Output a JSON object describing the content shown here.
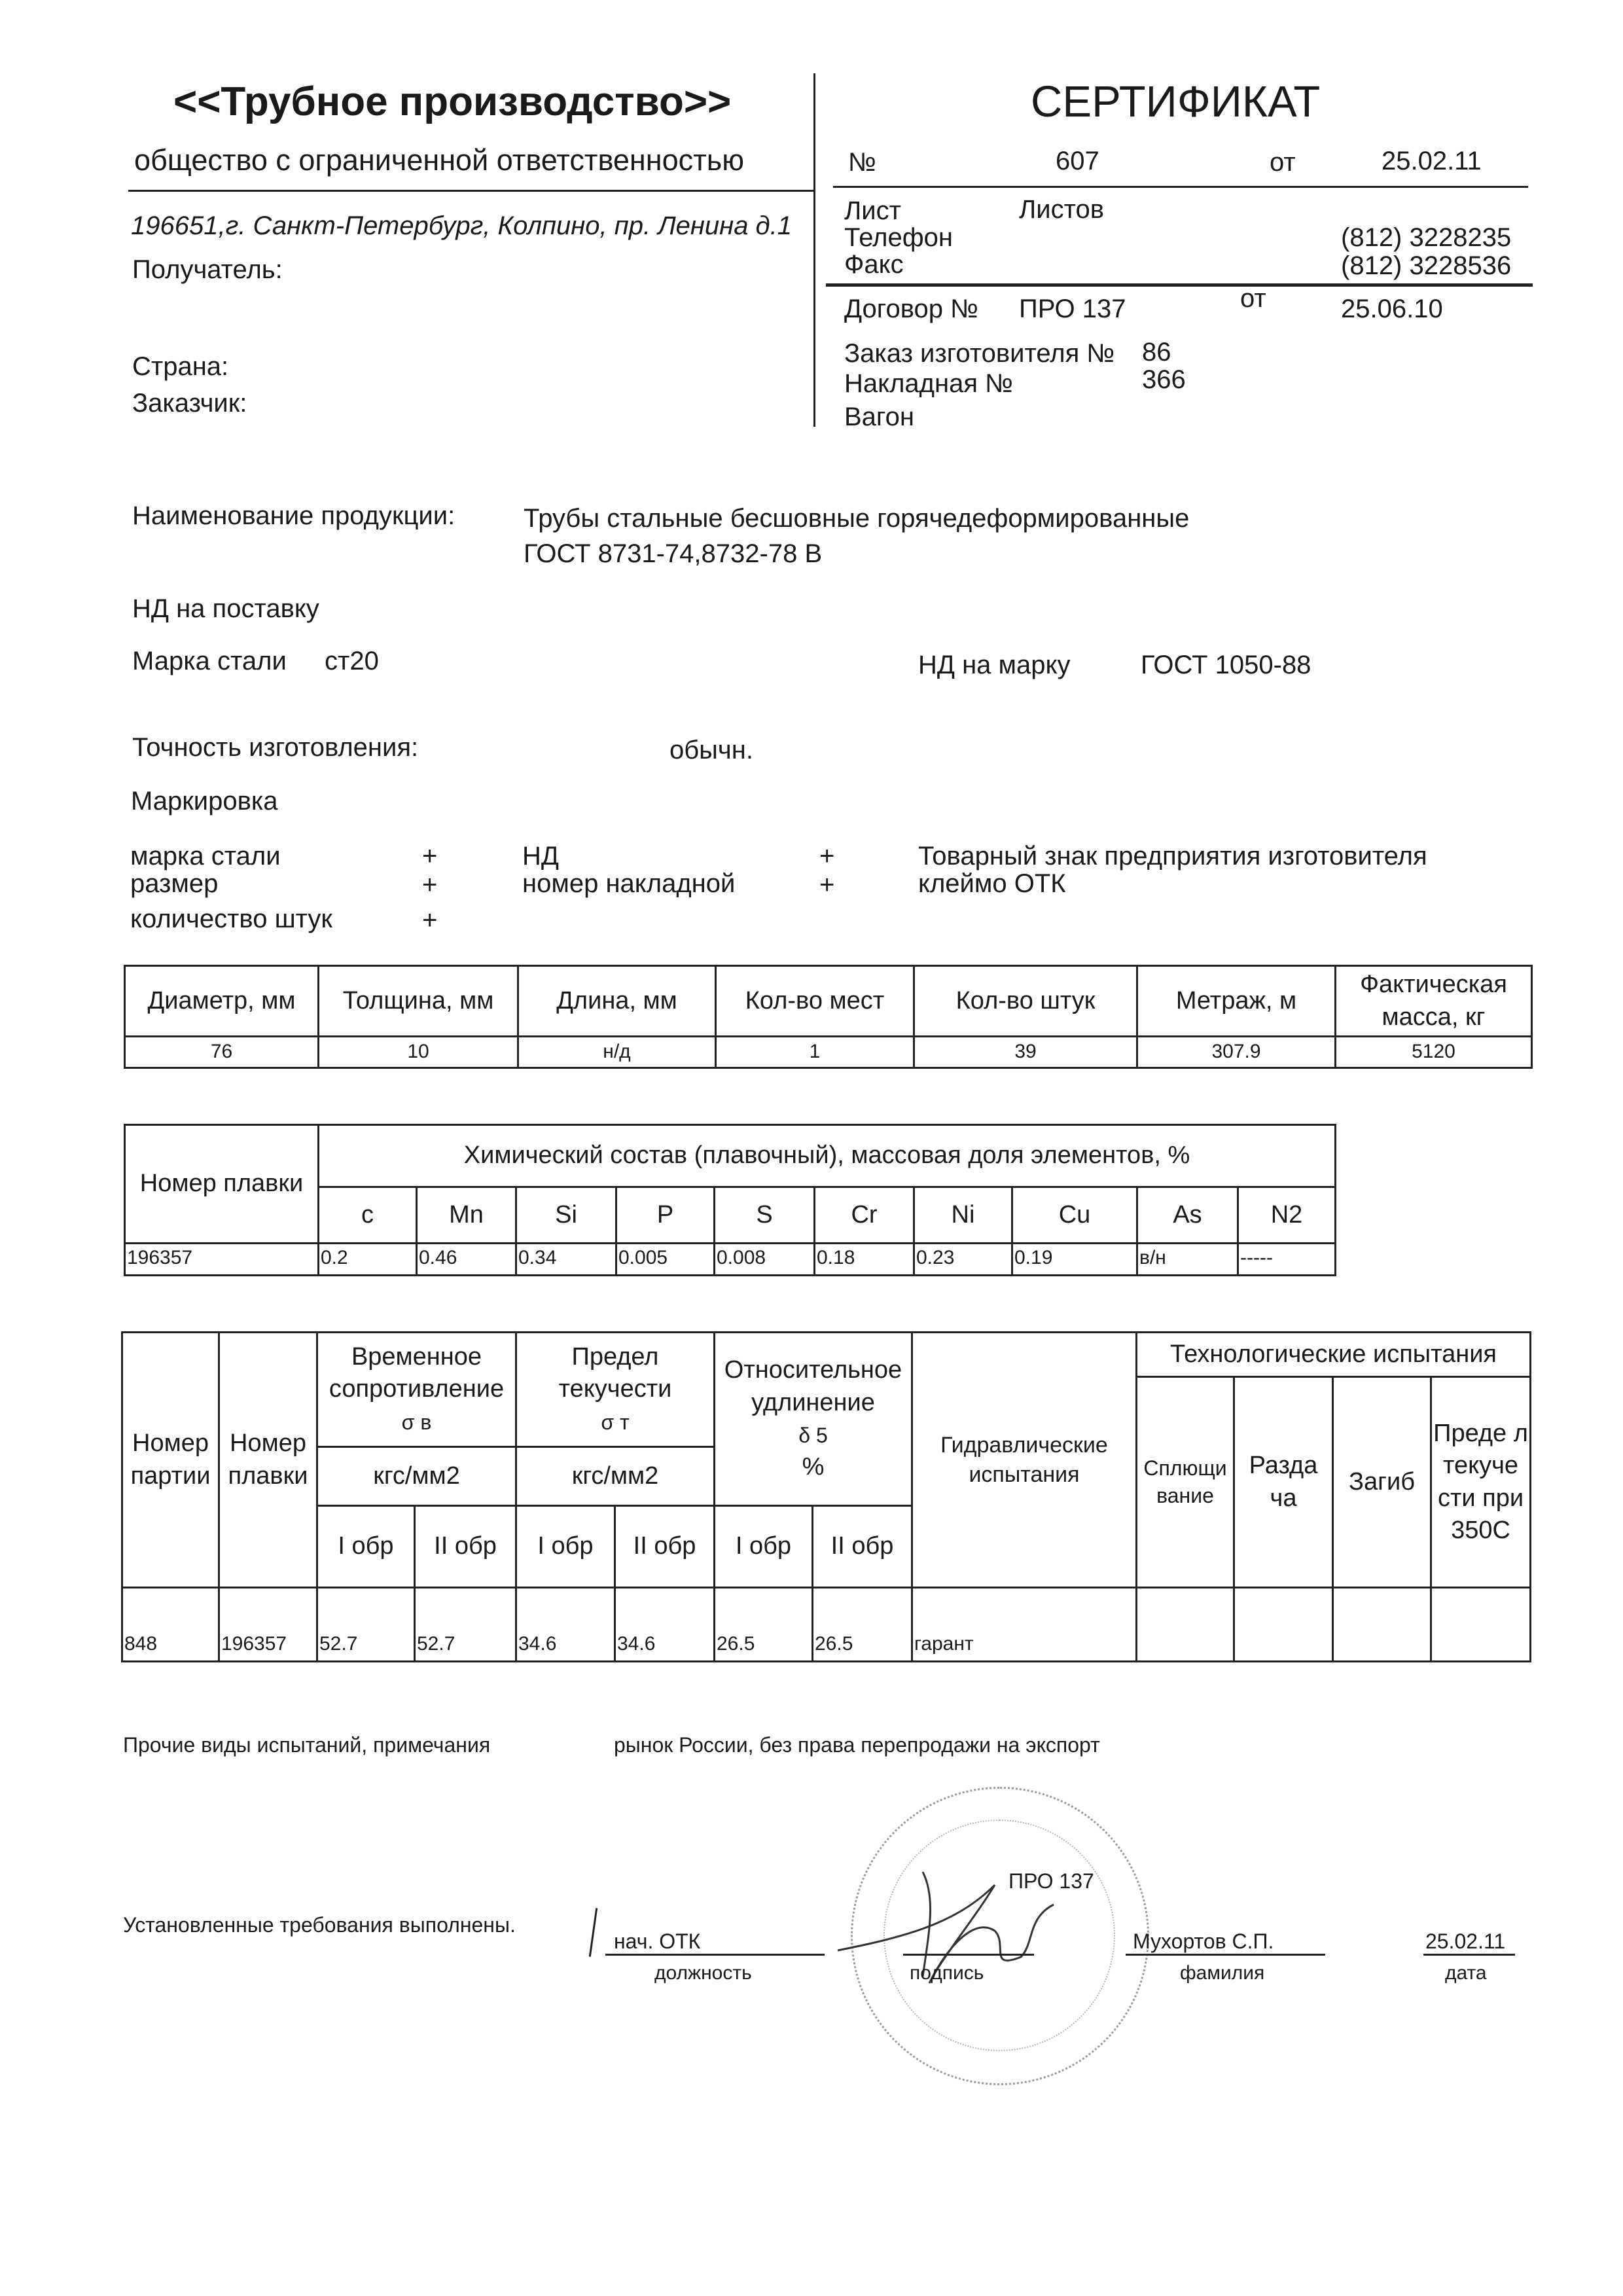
{
  "header": {
    "company": "<<Трубное производство>>",
    "company_type": "общество с ограниченной ответственностью",
    "address": "196651,г. Санкт-Петербург, Колпино, пр. Ленина д.1",
    "recipient_label": "Получатель:",
    "country_label": "Страна:",
    "customer_label": "Заказчик:"
  },
  "certificate": {
    "title": "СЕРТИФИКАТ",
    "number_label": "№",
    "number": "607",
    "from_label": "от",
    "date": "25.02.11",
    "sheet_label": "Лист",
    "sheets_label": "Листов",
    "phone_label": "Телефон",
    "phone": "(812) 3228235",
    "fax_label": "Факс",
    "fax": "(812) 3228536",
    "contract_label": "Договор №",
    "contract": "ПРО 137",
    "contract_from_label": "от",
    "contract_date": "25.06.10",
    "order_label": "Заказ изготовителя №",
    "order": "86",
    "invoice_label": "Накладная №",
    "invoice": "366",
    "wagon_label": "Вагон"
  },
  "product": {
    "name_label": "Наименование продукции:",
    "name_line1": "Трубы стальные бесшовные горячедеформированные",
    "name_line2": "ГОСТ 8731-74,8732-78 В",
    "nd_supply_label": "НД на поставку",
    "steel_label": "Марка стали",
    "steel": "ст20",
    "nd_grade_label": "НД на марку",
    "nd_grade": "ГОСТ  1050-88",
    "accuracy_label": "Точность изготовления:",
    "accuracy": "обычн.",
    "marking_label": "Маркировка"
  },
  "marking": {
    "col1": [
      {
        "label": "марка стали",
        "mark": "+"
      },
      {
        "label": "размер",
        "mark": "+"
      },
      {
        "label": "количество штук",
        "mark": "+"
      }
    ],
    "col2": [
      {
        "label": "НД",
        "mark": "+"
      },
      {
        "label": "номер накладной",
        "mark": "+"
      }
    ],
    "col3": [
      "Товарный знак предприятия изготовителя",
      "клеймо ОТК"
    ]
  },
  "table1": {
    "headers": [
      "Диаметр, мм",
      "Толщина, мм",
      "Длина, мм",
      "Кол-во мест",
      "Кол-во штук",
      "Метраж, м",
      "Фактическая масса, кг"
    ],
    "row": [
      "76",
      "10",
      "н/д",
      "1",
      "39",
      "307.9",
      "5120"
    ]
  },
  "table2": {
    "heat_header": "Номер плавки",
    "group_header": "Химический состав (плавочный), массовая доля элементов, %",
    "elements": [
      "c",
      "Mn",
      "Si",
      "P",
      "S",
      "Cr",
      "Ni",
      "Cu",
      "As",
      "N2"
    ],
    "row": [
      "196357",
      "0.2",
      "0.46",
      "0.34",
      "0.005",
      "0.008",
      "0.18",
      "0.23",
      "0.19",
      "в/н",
      "-----"
    ]
  },
  "table3": {
    "batch": "Номер партии",
    "heat": "Номер плавки",
    "tensile": "Временное сопротивление",
    "tensile_sym": "σ в",
    "yield": "Предел текучести",
    "yield_sym": "σ т",
    "elong": "Относительное удлинение",
    "elong_sym": "δ 5",
    "elong_unit": "%",
    "unit1": "кгс/мм2",
    "unit2": "кгс/мм2",
    "hydro": "Гидравлические испытания",
    "tech": "Технологические испытания",
    "flatten": "Сплющи вание",
    "expand": "Разда ча",
    "bend": "Загиб",
    "yield350": "Преде л текуче сти при 350С",
    "samples": [
      "I обр",
      "II обр",
      "I обр",
      "II обр",
      "I обр",
      "II обр"
    ],
    "row": [
      "848",
      "196357",
      "52.7",
      "52.7",
      "34.6",
      "34.6",
      "26.5",
      "26.5",
      "гарант",
      "",
      "",
      "",
      ""
    ]
  },
  "footer": {
    "other_tests_label": "Прочие виды испытаний, примечания",
    "other_tests": "рынок  России, без права перепродажи на экспорт",
    "requirements": "Установленные требования выполнены.",
    "position": "нач. ОТК",
    "position_label": "должность",
    "signature_label": "подпись",
    "name": "Мухортов С.П.",
    "name_label": "фамилия",
    "date": "25.02.11",
    "date_label": "дата",
    "stamp_text": "ПРО 137"
  }
}
